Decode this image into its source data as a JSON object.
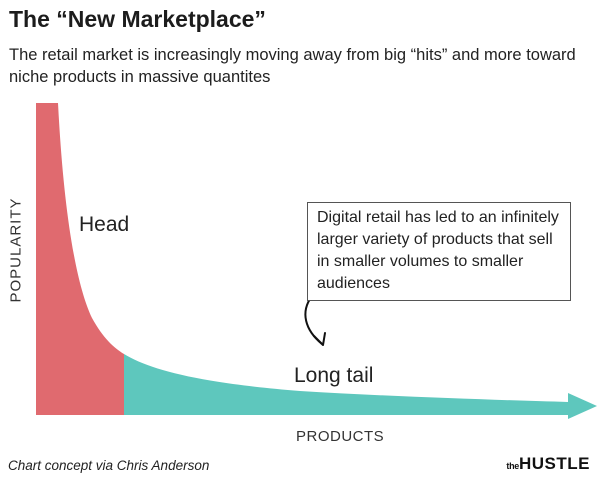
{
  "header": {
    "title": "The “New Marketplace”",
    "subtitle": "The retail market is increasingly moving away from big “hits” and more toward niche products in massive quantites"
  },
  "chart_data": {
    "type": "area",
    "xlabel": "PRODUCTS",
    "ylabel": "POPULARITY",
    "regions": [
      {
        "label": "Head",
        "color": "#e06a6f"
      },
      {
        "label": "Long tail",
        "color": "#5ec7bd"
      }
    ],
    "annotation": "Digital retail has led to an infinitely larger variety of products that sell in smaller volumes to smaller audiences",
    "grid": false,
    "legend": "none"
  },
  "footer": {
    "source": "Chart concept via Chris Anderson",
    "logo_small": "the",
    "logo_brand": "HUSTLE"
  },
  "colors": {
    "head": "#e06a6f",
    "tail": "#5ec7bd",
    "text": "#1f1f1f"
  }
}
